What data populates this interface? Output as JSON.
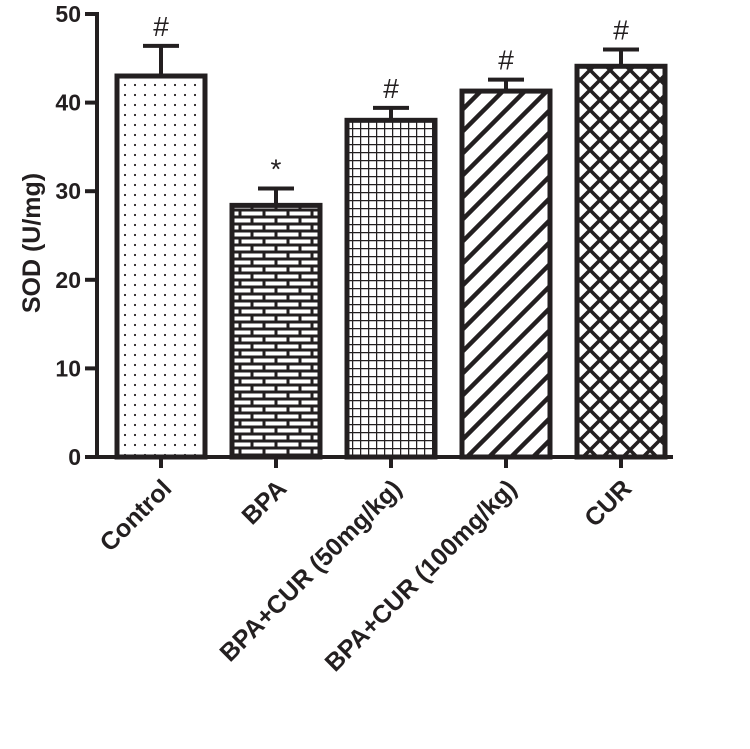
{
  "chart_data": {
    "type": "bar",
    "title": "",
    "xlabel": "",
    "ylabel": "SOD (U/mg)",
    "ylim": [
      0,
      50
    ],
    "yticks": [
      0,
      10,
      20,
      30,
      40,
      50
    ],
    "categories": [
      "Control",
      "BPA",
      "BPA+CUR (50mg/kg)",
      "BPA+CUR (100mg/kg)",
      "CUR"
    ],
    "values": [
      43,
      28.4,
      38,
      41.3,
      44.1
    ],
    "errors": [
      3.4,
      1.9,
      1.4,
      1.3,
      1.9
    ],
    "annotations": [
      "#",
      "*",
      "#",
      "#",
      "#"
    ],
    "patterns": [
      "dots",
      "brick",
      "grid",
      "diagonal",
      "crosshatch"
    ],
    "grid": false,
    "legend": "none",
    "bar_fill": "#ffffff",
    "ink_color": "#231f20"
  }
}
